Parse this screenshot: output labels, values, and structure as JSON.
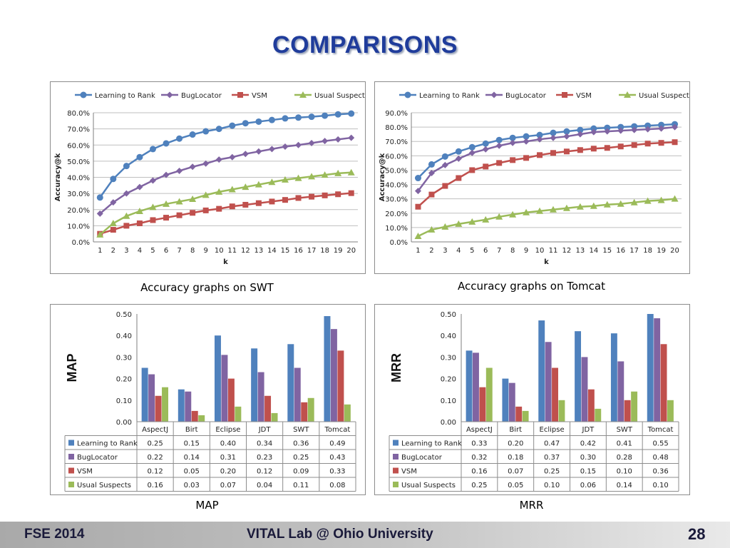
{
  "slide": {
    "title": "COMPARISONS",
    "footer_left": "FSE 2014",
    "footer_center": "VITAL Lab @ Ohio University",
    "page_number": "28"
  },
  "captions": {
    "swt": "Accuracy graphs on SWT",
    "tomcat": "Accuracy graphs on Tomcat",
    "map": "MAP",
    "mrr": "MRR"
  },
  "colors": {
    "learning_to_rank": "#4f81bd",
    "buglocator": "#8064a2",
    "vsm": "#c0504d",
    "usual_suspects": "#9bbb59"
  },
  "chart_data": [
    {
      "id": "swt",
      "type": "line",
      "xlabel": "k",
      "ylabel": "Accuracy@k",
      "x": [
        1,
        2,
        3,
        4,
        5,
        6,
        7,
        8,
        9,
        10,
        11,
        12,
        13,
        14,
        15,
        16,
        17,
        18,
        19,
        20
      ],
      "ylim": [
        0,
        0.8
      ],
      "yticks": [
        "0.0%",
        "10.0%",
        "20.0%",
        "30.0%",
        "40.0%",
        "50.0%",
        "60.0%",
        "70.0%",
        "80.0%"
      ],
      "grid": true,
      "legend": "top",
      "series": [
        {
          "name": "Learning to Rank",
          "marker": "circle",
          "values": [
            0.275,
            0.39,
            0.47,
            0.525,
            0.575,
            0.61,
            0.64,
            0.665,
            0.685,
            0.7,
            0.72,
            0.735,
            0.745,
            0.755,
            0.765,
            0.77,
            0.775,
            0.782,
            0.79,
            0.795
          ]
        },
        {
          "name": "BugLocator",
          "marker": "diamond",
          "values": [
            0.175,
            0.245,
            0.3,
            0.34,
            0.38,
            0.415,
            0.44,
            0.465,
            0.485,
            0.51,
            0.525,
            0.545,
            0.56,
            0.575,
            0.59,
            0.6,
            0.612,
            0.625,
            0.635,
            0.645
          ]
        },
        {
          "name": "VSM",
          "marker": "square",
          "values": [
            0.05,
            0.075,
            0.1,
            0.115,
            0.135,
            0.15,
            0.165,
            0.18,
            0.195,
            0.205,
            0.22,
            0.23,
            0.24,
            0.25,
            0.26,
            0.272,
            0.28,
            0.288,
            0.295,
            0.302
          ]
        },
        {
          "name": "Usual Suspects",
          "marker": "triangle",
          "values": [
            0.045,
            0.115,
            0.16,
            0.19,
            0.215,
            0.235,
            0.25,
            0.265,
            0.29,
            0.31,
            0.325,
            0.34,
            0.355,
            0.37,
            0.385,
            0.395,
            0.405,
            0.415,
            0.425,
            0.43
          ]
        }
      ]
    },
    {
      "id": "tomcat",
      "type": "line",
      "xlabel": "k",
      "ylabel": "Accuracy@k",
      "x": [
        1,
        2,
        3,
        4,
        5,
        6,
        7,
        8,
        9,
        10,
        11,
        12,
        13,
        14,
        15,
        16,
        17,
        18,
        19,
        20
      ],
      "ylim": [
        0,
        0.9
      ],
      "yticks": [
        "0.0%",
        "10.0%",
        "20.0%",
        "30.0%",
        "40.0%",
        "50.0%",
        "60.0%",
        "70.0%",
        "80.0%",
        "90.0%"
      ],
      "grid": true,
      "legend": "top",
      "series": [
        {
          "name": "Learning to Rank",
          "marker": "circle",
          "values": [
            0.445,
            0.54,
            0.595,
            0.63,
            0.66,
            0.685,
            0.71,
            0.725,
            0.735,
            0.745,
            0.76,
            0.77,
            0.78,
            0.79,
            0.795,
            0.8,
            0.805,
            0.81,
            0.815,
            0.82
          ]
        },
        {
          "name": "BugLocator",
          "marker": "diamond",
          "values": [
            0.355,
            0.48,
            0.535,
            0.58,
            0.62,
            0.645,
            0.67,
            0.69,
            0.7,
            0.715,
            0.725,
            0.735,
            0.75,
            0.765,
            0.77,
            0.775,
            0.78,
            0.785,
            0.79,
            0.8
          ]
        },
        {
          "name": "VSM",
          "marker": "square",
          "values": [
            0.245,
            0.33,
            0.39,
            0.445,
            0.5,
            0.525,
            0.55,
            0.57,
            0.585,
            0.605,
            0.62,
            0.63,
            0.64,
            0.65,
            0.655,
            0.665,
            0.675,
            0.685,
            0.69,
            0.695
          ]
        },
        {
          "name": "Usual Suspects",
          "marker": "triangle",
          "values": [
            0.04,
            0.085,
            0.105,
            0.125,
            0.14,
            0.155,
            0.175,
            0.19,
            0.205,
            0.215,
            0.225,
            0.235,
            0.245,
            0.25,
            0.26,
            0.265,
            0.275,
            0.285,
            0.29,
            0.3
          ]
        }
      ]
    },
    {
      "id": "map",
      "type": "bar",
      "ylabel": "MAP",
      "categories": [
        "AspectJ",
        "Birt",
        "Eclipse",
        "JDT",
        "SWT",
        "Tomcat"
      ],
      "ylim": [
        0,
        0.5
      ],
      "yticks": [
        "0.00",
        "0.10",
        "0.20",
        "0.30",
        "0.40",
        "0.50"
      ],
      "legend": "data-table",
      "series": [
        {
          "name": "Learning to Rank",
          "values": [
            0.25,
            0.15,
            0.4,
            0.34,
            0.36,
            0.49
          ],
          "labels": [
            "0.25",
            "0.15",
            "0.40",
            "0.34",
            "0.36",
            "0.49"
          ]
        },
        {
          "name": "BugLocator",
          "values": [
            0.22,
            0.14,
            0.31,
            0.23,
            0.25,
            0.43
          ],
          "labels": [
            "0.22",
            "0.14",
            "0.31",
            "0.23",
            "0.25",
            "0.43"
          ]
        },
        {
          "name": "VSM",
          "values": [
            0.12,
            0.05,
            0.2,
            0.12,
            0.09,
            0.33
          ],
          "labels": [
            "0.12",
            "0.05",
            "0.20",
            "0.12",
            "0.09",
            "0.33"
          ]
        },
        {
          "name": "Usual Suspects",
          "values": [
            0.16,
            0.03,
            0.07,
            0.04,
            0.11,
            0.08
          ],
          "labels": [
            "0.16",
            "0.03",
            "0.07",
            "0.04",
            "0.11",
            "0.08"
          ]
        }
      ]
    },
    {
      "id": "mrr",
      "type": "bar",
      "ylabel": "MRR",
      "categories": [
        "AspectJ",
        "Birt",
        "Eclipse",
        "JDT",
        "SWT",
        "Tomcat"
      ],
      "ylim": [
        0,
        0.5
      ],
      "yticks": [
        "0.00",
        "0.10",
        "0.20",
        "0.30",
        "0.40",
        "0.50"
      ],
      "legend": "data-table",
      "series": [
        {
          "name": "Learning to Rank",
          "values": [
            0.33,
            0.2,
            0.47,
            0.42,
            0.41,
            0.55
          ],
          "labels": [
            "0.33",
            "0.20",
            "0.47",
            "0.42",
            "0.41",
            "0.55"
          ]
        },
        {
          "name": "BugLocator",
          "values": [
            0.32,
            0.18,
            0.37,
            0.3,
            0.28,
            0.48
          ],
          "labels": [
            "0.32",
            "0.18",
            "0.37",
            "0.30",
            "0.28",
            "0.48"
          ]
        },
        {
          "name": "VSM",
          "values": [
            0.16,
            0.07,
            0.25,
            0.15,
            0.1,
            0.36
          ],
          "labels": [
            "0.16",
            "0.07",
            "0.25",
            "0.15",
            "0.10",
            "0.36"
          ]
        },
        {
          "name": "Usual Suspects",
          "values": [
            0.25,
            0.05,
            0.1,
            0.06,
            0.14,
            0.1
          ],
          "labels": [
            "0.25",
            "0.05",
            "0.10",
            "0.06",
            "0.14",
            "0.10"
          ]
        }
      ]
    }
  ]
}
